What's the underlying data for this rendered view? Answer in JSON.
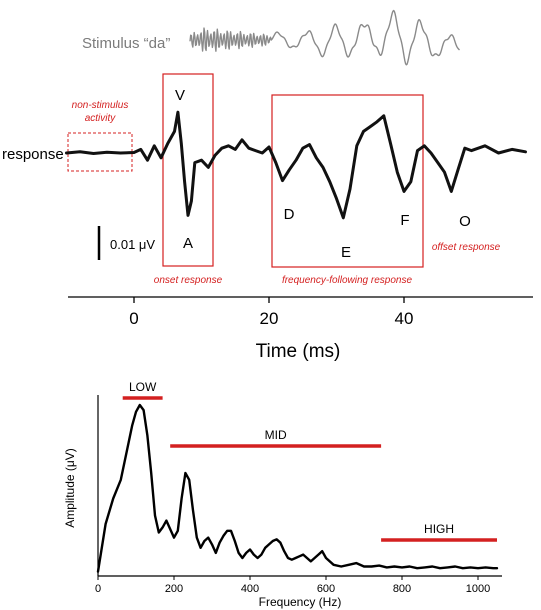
{
  "colors": {
    "accent": "#d42020",
    "stimulus": "#8a8a8a",
    "trace": "#111111"
  },
  "top_panel": {
    "stimulus_label": "Stimulus “da”",
    "response_label": "response",
    "scale_bar_label": "0.01 μV",
    "peaks": [
      "V",
      "A",
      "D",
      "E",
      "F",
      "O"
    ],
    "regions": {
      "non_stimulus_line1": "non-stimulus",
      "non_stimulus_line2": "activity",
      "onset": "onset response",
      "ffr": "frequency-following response",
      "offset": "offset response"
    }
  },
  "chart_data": [
    {
      "type": "line",
      "xlabel": "Time (ms)",
      "xlim": [
        -10,
        58
      ],
      "xticks": [
        0,
        20,
        40
      ],
      "series": [
        {
          "x": [
            -10,
            -8,
            -6,
            -4,
            -2,
            0,
            1,
            2,
            3,
            4,
            5,
            6,
            6.5,
            7,
            7.5,
            8,
            8.5,
            9,
            10,
            11,
            12,
            13,
            14,
            15,
            16,
            17,
            18,
            19,
            20,
            21,
            22,
            23,
            24,
            25,
            26,
            27,
            28,
            29,
            30,
            31,
            32,
            33,
            34,
            35,
            36,
            37,
            38,
            39,
            40,
            41,
            42,
            43,
            44,
            45,
            46,
            47,
            48,
            49,
            50,
            52,
            54,
            56,
            58
          ],
          "y": [
            0,
            0.05,
            -0.02,
            0.03,
            0,
            0.02,
            0.15,
            -0.3,
            0.3,
            -0.2,
            0.4,
            0.9,
            1.7,
            0.4,
            -1.2,
            -2.6,
            -2.0,
            -0.4,
            -0.3,
            -0.6,
            -0.1,
            0.2,
            0.3,
            0.15,
            0.55,
            0.2,
            0.1,
            0.0,
            0.25,
            -0.4,
            -1.15,
            -0.7,
            -0.3,
            0.2,
            0.35,
            -0.2,
            -0.6,
            -1.2,
            -1.9,
            -2.7,
            -1.5,
            0.3,
            0.9,
            1.1,
            1.3,
            1.55,
            0.4,
            -0.8,
            -1.6,
            -1.2,
            0.1,
            0.3,
            0.0,
            -0.4,
            -0.8,
            -1.6,
            -0.7,
            0.2,
            0.1,
            0.3,
            0.0,
            0.15,
            0.05
          ]
        }
      ]
    },
    {
      "type": "line",
      "xlabel": "Frequency (Hz)",
      "ylabel": "Amplitude (μV)",
      "xlim": [
        0,
        1050
      ],
      "xticks": [
        0,
        200,
        400,
        600,
        800,
        1000
      ],
      "ylim": [
        0,
        1
      ],
      "bands": [
        {
          "name": "LOW",
          "range": [
            65,
            170
          ]
        },
        {
          "name": "MID",
          "range": [
            190,
            745
          ]
        },
        {
          "name": "HIGH",
          "range": [
            745,
            1050
          ]
        }
      ],
      "series": [
        {
          "x": [
            0,
            20,
            40,
            60,
            75,
            90,
            100,
            110,
            120,
            130,
            140,
            150,
            160,
            170,
            180,
            190,
            200,
            210,
            220,
            230,
            240,
            250,
            260,
            270,
            280,
            290,
            300,
            310,
            320,
            330,
            340,
            350,
            360,
            370,
            380,
            390,
            400,
            410,
            420,
            430,
            440,
            450,
            460,
            470,
            480,
            490,
            500,
            510,
            520,
            530,
            540,
            550,
            560,
            570,
            580,
            590,
            600,
            620,
            640,
            660,
            680,
            700,
            720,
            740,
            760,
            780,
            800,
            820,
            840,
            860,
            880,
            900,
            920,
            940,
            960,
            980,
            1000,
            1020,
            1040,
            1050
          ],
          "y": [
            0.02,
            0.3,
            0.45,
            0.56,
            0.72,
            0.88,
            0.96,
            1.0,
            0.97,
            0.82,
            0.6,
            0.35,
            0.25,
            0.28,
            0.32,
            0.27,
            0.22,
            0.26,
            0.45,
            0.6,
            0.56,
            0.38,
            0.22,
            0.16,
            0.2,
            0.22,
            0.18,
            0.13,
            0.19,
            0.23,
            0.26,
            0.26,
            0.2,
            0.13,
            0.1,
            0.13,
            0.15,
            0.12,
            0.1,
            0.12,
            0.16,
            0.18,
            0.2,
            0.21,
            0.19,
            0.14,
            0.1,
            0.09,
            0.1,
            0.11,
            0.12,
            0.1,
            0.08,
            0.1,
            0.12,
            0.14,
            0.1,
            0.06,
            0.05,
            0.06,
            0.07,
            0.05,
            0.05,
            0.055,
            0.045,
            0.05,
            0.045,
            0.05,
            0.04,
            0.045,
            0.05,
            0.04,
            0.045,
            0.05,
            0.04,
            0.045,
            0.04,
            0.045,
            0.04,
            0.04
          ]
        }
      ]
    }
  ]
}
